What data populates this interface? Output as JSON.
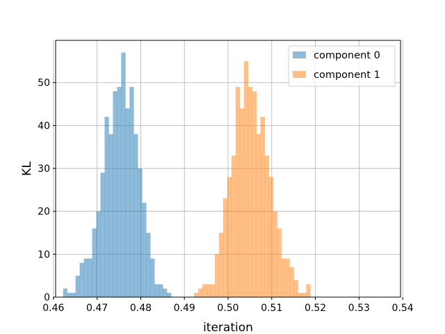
{
  "chart_data": {
    "type": "bar",
    "title": "",
    "xlabel": "iteration",
    "ylabel": "KL",
    "xlim": [
      0.4605,
      0.5395
    ],
    "ylim": [
      0,
      59.85
    ],
    "xticks": [
      0.46,
      0.47,
      0.48,
      0.49,
      0.5,
      0.51,
      0.52,
      0.53,
      0.54
    ],
    "xtick_labels": [
      "0.46",
      "0.47",
      "0.48",
      "0.49",
      "0.50",
      "0.51",
      "0.52",
      "0.53",
      "0.54"
    ],
    "yticks": [
      0,
      10,
      20,
      30,
      40,
      50
    ],
    "ytick_labels": [
      "0",
      "10",
      "20",
      "30",
      "40",
      "50"
    ],
    "grid": true,
    "legend_position": "top-right",
    "series": [
      {
        "name": "component 0",
        "color": "#1f77b4",
        "opacity": 0.5,
        "bin_start": 0.4622,
        "bin_width": 0.000952,
        "counts": [
          2,
          1,
          1,
          5,
          8,
          9,
          9,
          16,
          20,
          29,
          42,
          38,
          48,
          49,
          57,
          44,
          49,
          38,
          30,
          22,
          15,
          9,
          3,
          3,
          2,
          1
        ]
      },
      {
        "name": "component 1",
        "color": "#ff7f0e",
        "opacity": 0.5,
        "bin_start": 0.4922,
        "bin_width": 0.000952,
        "counts": [
          1,
          2,
          3,
          3,
          3,
          10,
          15,
          23,
          28,
          33,
          49,
          44,
          55,
          49,
          48,
          38,
          42,
          33,
          28,
          20,
          16,
          9,
          9,
          7,
          4,
          1,
          1,
          3
        ]
      }
    ]
  }
}
